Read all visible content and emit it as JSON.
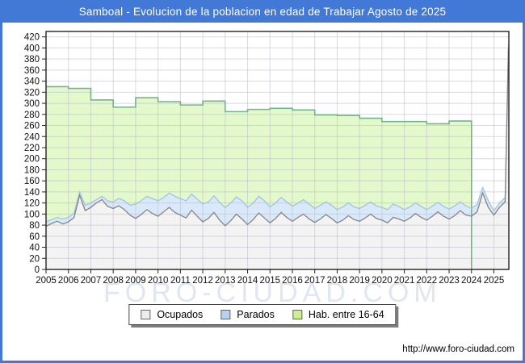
{
  "title": "Samboal - Evolucion de la poblacion en edad de Trabajar Agosto de 2025",
  "watermark": "FORO-CIUDAD.COM",
  "footer_url": "http://www.foro-ciudad.com",
  "palette": {
    "frame_blue": "#4278d6",
    "grid": "#b9b9cc",
    "axis": "#222222",
    "text": "#111111",
    "watermark_color": "#e0e6f2",
    "hab_fill": "#e4f9cb",
    "hab_line": "#76b28c",
    "hab_swatch": "#c9ef90",
    "parados_fill": "#d9e9f9",
    "parados_line": "#a3c3e3",
    "parados_swatch": "#b7d2ee",
    "ocupados_fill": "#f3f3f3",
    "ocupados_line": "#858585",
    "ocupados_swatch": "#ededed"
  },
  "legend": {
    "items": [
      {
        "label": "Ocupados"
      },
      {
        "label": "Parados"
      },
      {
        "label": "Hab. entre 16-64"
      }
    ]
  },
  "chart_data": {
    "type": "area",
    "title": "Samboal - Evolucion de la poblacion en edad de Trabajar Agosto de 2025",
    "xlabel": "",
    "ylabel": "",
    "x_min": 2005.0,
    "x_max": 2025.667,
    "ylim": [
      0,
      420
    ],
    "y_tick_step": 20,
    "x_tick_labels": [
      "2005",
      "2006",
      "2007",
      "2008",
      "2009",
      "2010",
      "2011",
      "2012",
      "2013",
      "2014",
      "2015",
      "2016",
      "2017",
      "2018",
      "2019",
      "2020",
      "2021",
      "2022",
      "2023",
      "2024",
      "2025"
    ],
    "grid": true,
    "legend_position": "bottom",
    "series": [
      {
        "name": "Hab. entre 16-64",
        "style": "yearly-steps",
        "years": [
          2005,
          2006,
          2007,
          2008,
          2009,
          2010,
          2011,
          2012,
          2013,
          2014,
          2015,
          2016,
          2017,
          2018,
          2019,
          2020,
          2021,
          2022,
          2023
        ],
        "values": [
          330,
          327,
          306,
          293,
          310,
          303,
          297,
          304,
          285,
          289,
          291,
          288,
          279,
          278,
          273,
          267,
          267,
          263,
          268
        ],
        "x_end": 2024.0
      },
      {
        "name": "Ocupados",
        "style": "area-line",
        "sampling": "quarterly estimate read from plot",
        "x_start": 2005.0,
        "x_step": 0.25,
        "values": [
          78,
          83,
          87,
          82,
          86,
          94,
          134,
          106,
          112,
          120,
          126,
          114,
          110,
          115,
          108,
          98,
          92,
          99,
          108,
          101,
          96,
          104,
          112,
          103,
          98,
          93,
          107,
          96,
          86,
          92,
          103,
          89,
          79,
          88,
          100,
          91,
          81,
          90,
          102,
          93,
          84,
          92,
          103,
          94,
          87,
          94,
          100,
          91,
          85,
          91,
          99,
          92,
          84,
          89,
          97,
          90,
          87,
          93,
          100,
          92,
          89,
          84,
          94,
          91,
          87,
          93,
          101,
          94,
          89,
          96,
          104,
          96,
          91,
          97,
          106,
          98,
          96,
          104,
          138,
          112,
          98,
          112,
          122
        ],
        "final": {
          "x": 2025.65,
          "value": 398
        }
      },
      {
        "name": "Parados",
        "style": "area-line",
        "stacked_on": "Ocupados",
        "sampling": "quarterly estimate read from plot",
        "x_start": 2005.0,
        "x_step": 0.25,
        "values": [
          8,
          7,
          7,
          9,
          8,
          8,
          6,
          10,
          8,
          6,
          6,
          10,
          12,
          13,
          16,
          18,
          26,
          25,
          24,
          27,
          28,
          26,
          26,
          29,
          30,
          31,
          29,
          31,
          32,
          30,
          30,
          32,
          33,
          32,
          31,
          33,
          31,
          30,
          30,
          31,
          29,
          28,
          27,
          28,
          27,
          26,
          26,
          27,
          25,
          25,
          23,
          24,
          24,
          24,
          23,
          23,
          23,
          23,
          22,
          23,
          23,
          24,
          24,
          23,
          21,
          20,
          19,
          20,
          19,
          18,
          17,
          18,
          18,
          18,
          16,
          17,
          14,
          14,
          10,
          12,
          8,
          8,
          8
        ],
        "final": {
          "x": 2025.65,
          "value": 8
        }
      }
    ]
  }
}
